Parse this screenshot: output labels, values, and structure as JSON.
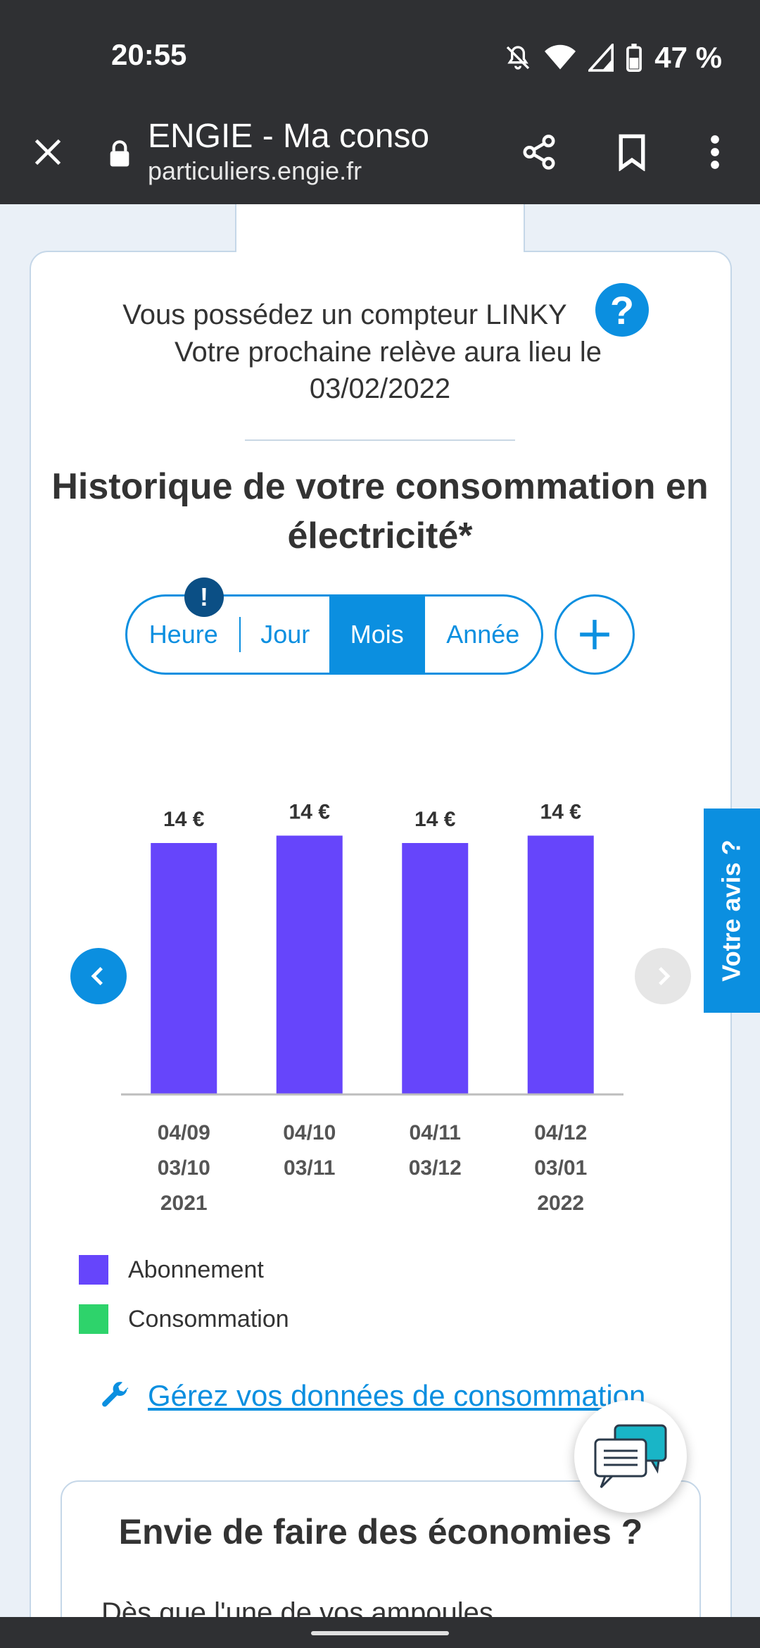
{
  "status_bar": {
    "time": "20:55",
    "battery": "47 %"
  },
  "browser": {
    "title": "ENGIE - Ma conso",
    "url": "particuliers.engie.fr"
  },
  "meter": {
    "line1": "Vous possédez un compteur LINKY",
    "line2": "Votre prochaine relève aura lieu le",
    "date": "03/02/2022",
    "help_symbol": "?"
  },
  "section_title": "Historique de votre consommation en électricité*",
  "period_tabs": [
    {
      "label": "Heure"
    },
    {
      "label": "Jour"
    },
    {
      "label": "Mois"
    },
    {
      "label": "Année"
    }
  ],
  "active_tab": "Mois",
  "warning_symbol": "!",
  "chart_data": {
    "type": "bar",
    "stacked": true,
    "categories": [
      [
        "04/09",
        "03/10",
        "2021"
      ],
      [
        "04/10",
        "03/11",
        ""
      ],
      [
        "04/11",
        "03/12",
        ""
      ],
      [
        "04/12",
        "03/01",
        "2022"
      ]
    ],
    "series": [
      {
        "name": "Abonnement",
        "color": "#6645fb",
        "values": [
          13.6,
          14.0,
          13.6,
          14.0
        ]
      },
      {
        "name": "Consommation",
        "color": "#2ed36b",
        "values": [
          0,
          0,
          0,
          0
        ]
      }
    ],
    "data_labels": [
      "14 €",
      "14 €",
      "14 €",
      "14 €"
    ],
    "ylim": [
      0,
      16
    ],
    "grid": false
  },
  "legend": [
    {
      "label": "Abonnement",
      "color": "#6645fb"
    },
    {
      "label": "Consommation",
      "color": "#2ed36b"
    }
  ],
  "manage_link": "Gérez vos données de consommation",
  "feedback_tab": "Votre avis ?",
  "savings": {
    "title": "Envie de faire des économies ?",
    "text": "Dès que l'une de vos ampoules"
  },
  "icons": {
    "close": "close-icon",
    "lock": "lock-icon",
    "share": "share-icon",
    "bookmark": "bookmark-icon",
    "menu": "more-vert-icon",
    "wrench": "wrench-icon",
    "chat": "chat-icon"
  }
}
